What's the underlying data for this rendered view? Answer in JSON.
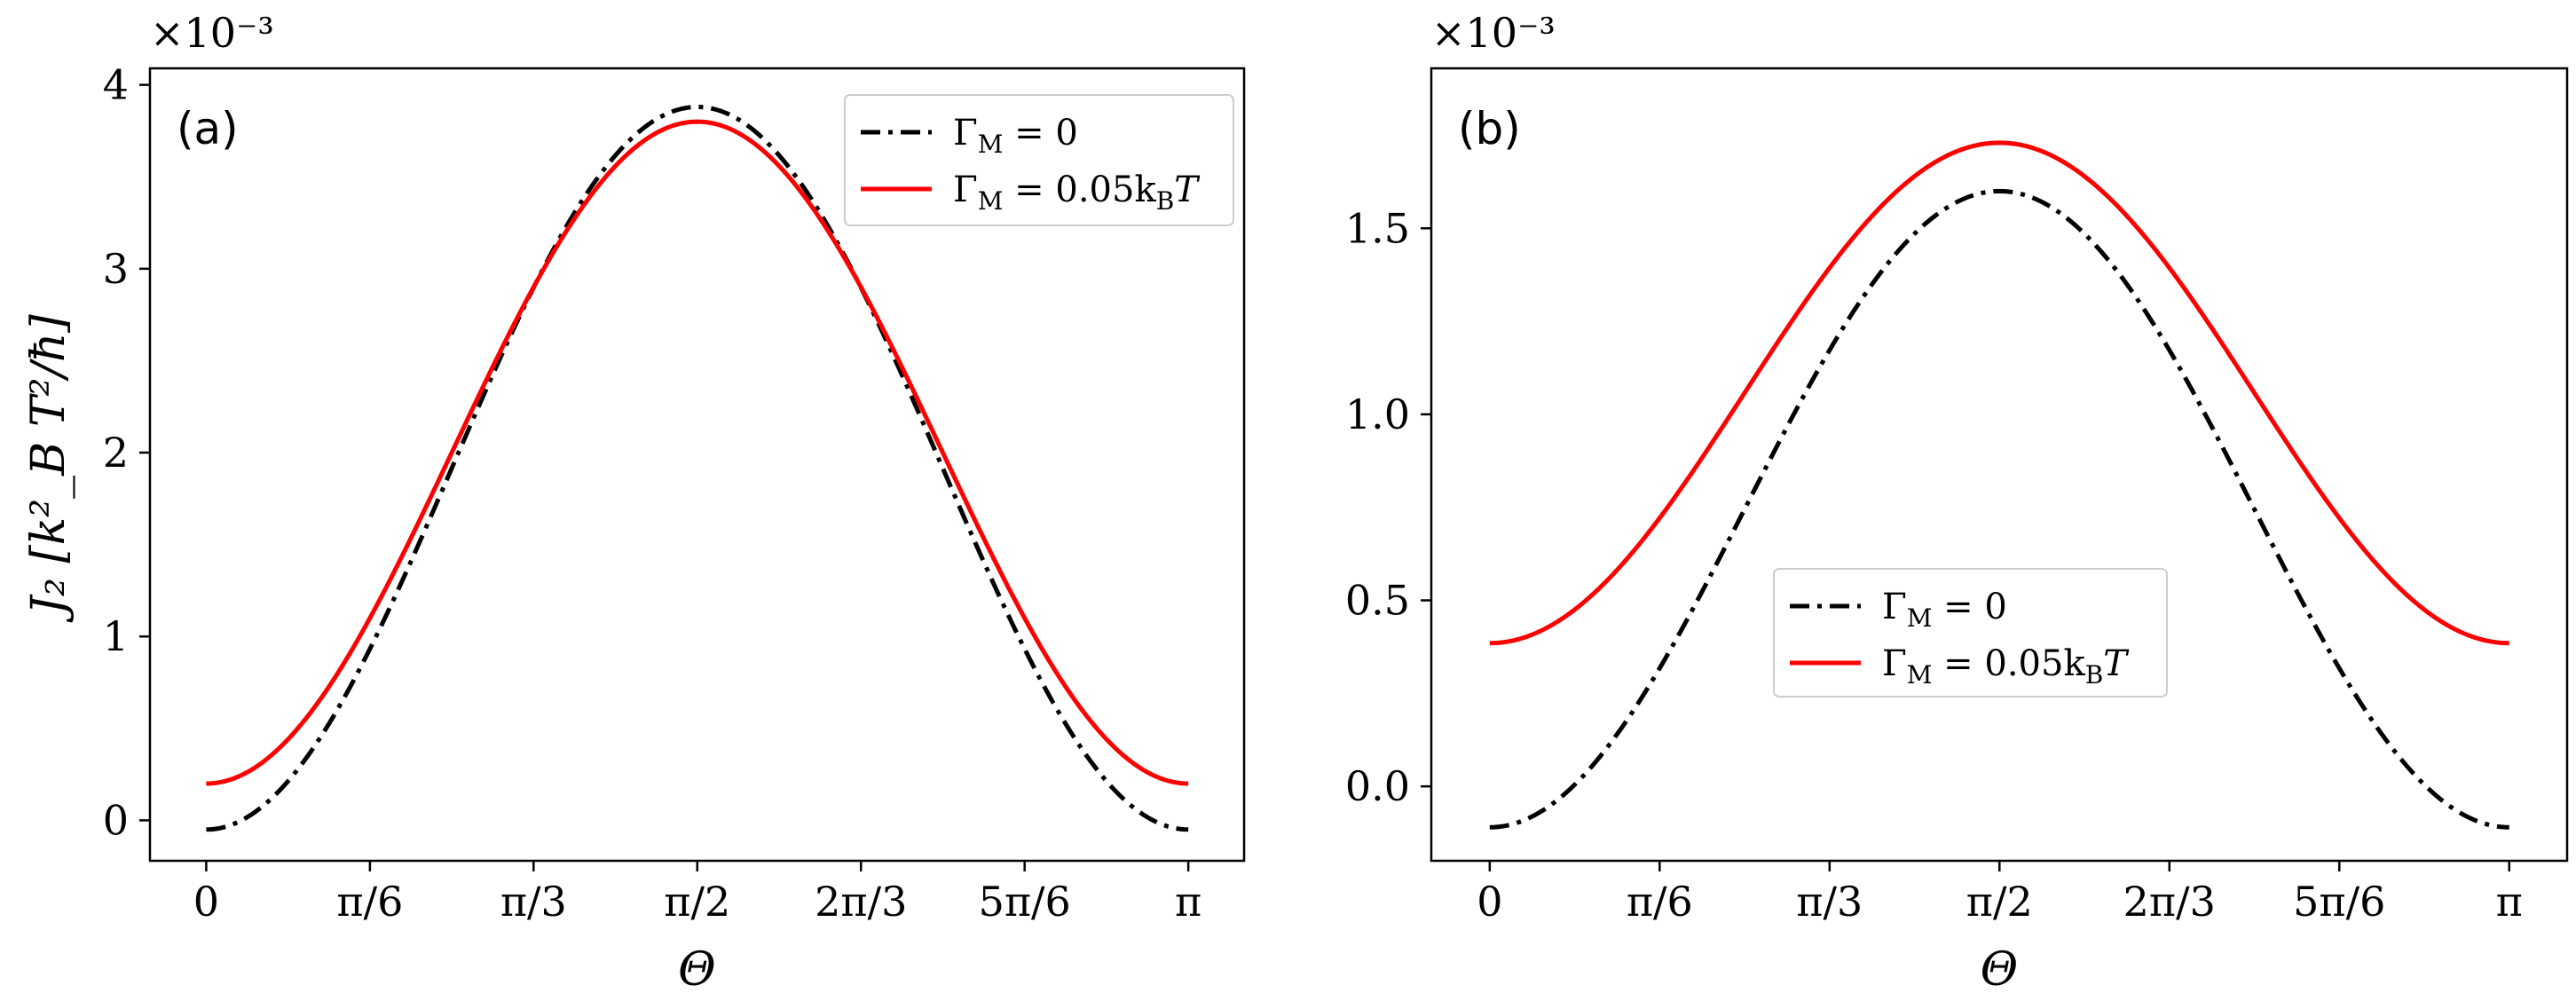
{
  "chart_data": [
    {
      "type": "line",
      "panel_label": "(a)",
      "xlabel": "Θ",
      "ylabel": "J₂ [k²_B T²/ħ]",
      "multiplier": "×10⁻³",
      "xlim": [
        -0.18,
        3.32
      ],
      "ylim": [
        -0.00022,
        0.00409
      ],
      "xticks": [
        {
          "value": 0,
          "label": "0"
        },
        {
          "value": 0.5236,
          "label": "π/6"
        },
        {
          "value": 1.0472,
          "label": "π/3"
        },
        {
          "value": 1.5708,
          "label": "π/2"
        },
        {
          "value": 2.0944,
          "label": "2π/3"
        },
        {
          "value": 2.618,
          "label": "5π/6"
        },
        {
          "value": 3.1416,
          "label": "π"
        }
      ],
      "yticks": [
        {
          "value": 0,
          "label": "0"
        },
        {
          "value": 0.001,
          "label": "1"
        },
        {
          "value": 0.002,
          "label": "2"
        },
        {
          "value": 0.003,
          "label": "3"
        },
        {
          "value": 0.004,
          "label": "4"
        }
      ],
      "legend_position": "top-right",
      "series": [
        {
          "name": "Γ_M = 0",
          "label_main": "Γ",
          "label_sub": "M",
          "label_rest": " = 0",
          "color": "#000000",
          "style": "dashdot",
          "A": -5e-05,
          "B": 0.00393
        },
        {
          "name": "Γ_M = 0.05 k_B T",
          "label_main": "Γ",
          "label_sub": "M",
          "label_rest": " = 0.05k",
          "label_sub2": "B",
          "label_tail": "T",
          "color": "#ff0000",
          "style": "solid",
          "A": 0.0002,
          "B": 0.0036
        }
      ]
    },
    {
      "type": "line",
      "panel_label": "(b)",
      "xlabel": "Θ",
      "ylabel": "",
      "multiplier": "×10⁻³",
      "xlim": [
        -0.18,
        3.32
      ],
      "ylim": [
        -0.0002,
        0.00193
      ],
      "xticks": [
        {
          "value": 0,
          "label": "0"
        },
        {
          "value": 0.5236,
          "label": "π/6"
        },
        {
          "value": 1.0472,
          "label": "π/3"
        },
        {
          "value": 1.5708,
          "label": "π/2"
        },
        {
          "value": 2.0944,
          "label": "2π/3"
        },
        {
          "value": 2.618,
          "label": "5π/6"
        },
        {
          "value": 3.1416,
          "label": "π"
        }
      ],
      "yticks": [
        {
          "value": 0,
          "label": "0.0"
        },
        {
          "value": 0.0005,
          "label": "0.5"
        },
        {
          "value": 0.001,
          "label": "1.0"
        },
        {
          "value": 0.0015,
          "label": "1.5"
        }
      ],
      "legend_position": "center",
      "series": [
        {
          "name": "Γ_M = 0",
          "label_main": "Γ",
          "label_sub": "M",
          "label_rest": " = 0",
          "color": "#000000",
          "style": "dashdot",
          "A": -0.00011,
          "B": 0.00171
        },
        {
          "name": "Γ_M = 0.05 k_B T",
          "label_main": "Γ",
          "label_sub": "M",
          "label_rest": " = 0.05k",
          "label_sub2": "B",
          "label_tail": "T",
          "color": "#ff0000",
          "style": "solid",
          "A": 0.000385,
          "B": 0.001345
        }
      ]
    }
  ]
}
